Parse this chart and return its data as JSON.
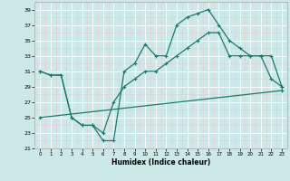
{
  "xlabel": "Humidex (Indice chaleur)",
  "background_color": "#cce8e8",
  "grid_color": "#ffffff",
  "line_color": "#1a7a6e",
  "xlim": [
    -0.5,
    23.5
  ],
  "ylim": [
    21,
    40
  ],
  "yticks": [
    21,
    23,
    25,
    27,
    29,
    31,
    33,
    35,
    37,
    39
  ],
  "xticks": [
    0,
    1,
    2,
    3,
    4,
    5,
    6,
    7,
    8,
    9,
    10,
    11,
    12,
    13,
    14,
    15,
    16,
    17,
    18,
    19,
    20,
    21,
    22,
    23
  ],
  "line1_x": [
    0,
    1,
    2,
    3,
    4,
    5,
    6,
    7,
    8,
    9,
    10,
    11,
    12,
    13,
    14,
    15,
    16,
    17,
    18,
    19,
    20,
    21,
    22,
    23
  ],
  "line1_y": [
    31,
    30.5,
    30.5,
    25,
    24,
    24,
    22,
    22,
    31,
    32,
    34.5,
    33,
    33,
    37,
    38,
    38.5,
    39,
    37,
    35,
    34,
    33,
    33,
    30,
    29
  ],
  "line2_x": [
    0,
    1,
    2,
    3,
    4,
    5,
    6,
    7,
    8,
    9,
    10,
    11,
    12,
    13,
    14,
    15,
    16,
    17,
    18,
    19,
    20,
    21,
    22,
    23
  ],
  "line2_y": [
    31,
    30.5,
    30.5,
    25,
    24,
    24,
    23,
    27,
    29,
    30,
    31,
    31,
    32,
    33,
    34,
    35,
    36,
    36,
    33,
    33,
    33,
    33,
    33,
    29
  ],
  "line3_x": [
    0,
    23
  ],
  "line3_y": [
    25,
    28.5
  ]
}
